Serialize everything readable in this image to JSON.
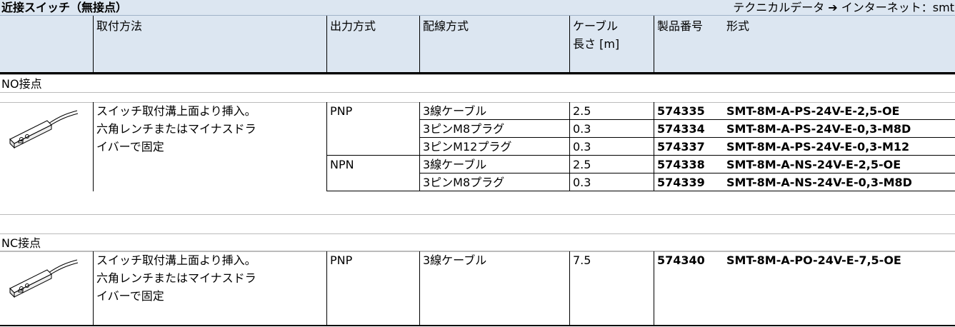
{
  "header": {
    "title": "近接スイッチ（無接点）",
    "link": "テクニカルデータ ➔ インターネット：smt"
  },
  "table": {
    "columns": {
      "mounting": "取付方法",
      "output": "出力方式",
      "wiring": "配線方式",
      "length": [
        "ケーブル",
        "長さ [m]"
      ],
      "part": "製品番号",
      "model": "形式"
    },
    "groups": [
      {
        "label": "NO接点",
        "mounting": [
          "スイッチ取付溝上面より挿入。",
          "六角レンチまたはマイナスドラ",
          "イバーで固定"
        ],
        "outputs": [
          {
            "type": "PNP",
            "rows": [
              {
                "wiring": "3線ケーブル",
                "length": 2.5,
                "part": "574335",
                "model": "SMT-8M-A-PS-24V-E-2,5-OE"
              },
              {
                "wiring": "3ピンM8プラグ",
                "length": 0.3,
                "part": "574334",
                "model": "SMT-8M-A-PS-24V-E-0,3-M8D"
              },
              {
                "wiring": "3ピンM12プラグ",
                "length": 0.3,
                "part": "574337",
                "model": "SMT-8M-A-PS-24V-E-0,3-M12"
              }
            ]
          },
          {
            "type": "NPN",
            "rows": [
              {
                "wiring": "3線ケーブル",
                "length": 2.5,
                "part": "574338",
                "model": "SMT-8M-A-NS-24V-E-2,5-OE"
              },
              {
                "wiring": "3ピンM8プラグ",
                "length": 0.3,
                "part": "574339",
                "model": "SMT-8M-A-NS-24V-E-0,3-M8D"
              }
            ]
          }
        ]
      },
      {
        "label": "NC接点",
        "mounting": [
          "スイッチ取付溝上面より挿入。",
          "六角レンチまたはマイナスドラ",
          "イバーで固定"
        ],
        "outputs": [
          {
            "type": "PNP",
            "rows": [
              {
                "wiring": "3線ケーブル",
                "length": 7.5,
                "part": "574340",
                "model": "SMT-8M-A-PO-24V-E-7,5-OE"
              }
            ]
          }
        ]
      }
    ]
  }
}
